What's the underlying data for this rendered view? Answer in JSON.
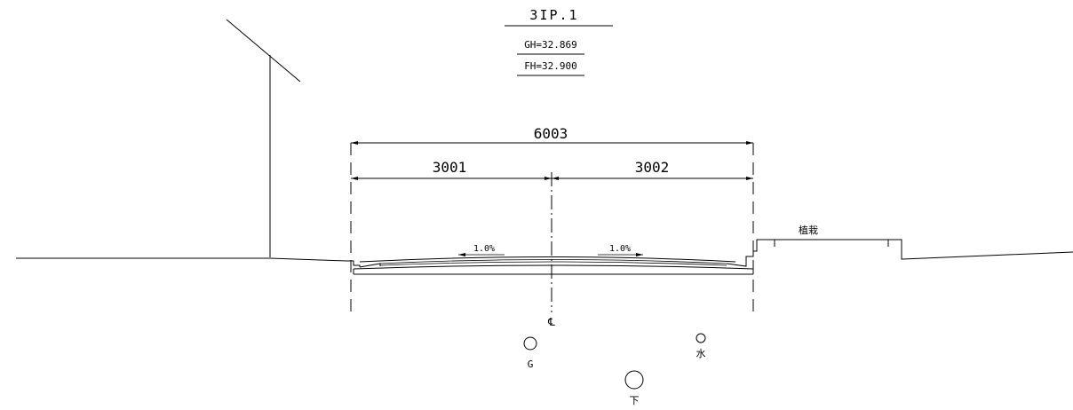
{
  "title": {
    "id": "3IP.1",
    "gh": "GH=32.869",
    "fh": "FH=32.900"
  },
  "dimensions": {
    "total": "6003",
    "left": "3001",
    "right": "3002"
  },
  "slopes": {
    "left": "1.0%",
    "right": "1.0%"
  },
  "labels": {
    "planting": "植栽",
    "centerline": "℄"
  },
  "utilities": {
    "gas": "G",
    "water": "水",
    "sewer": "下"
  }
}
